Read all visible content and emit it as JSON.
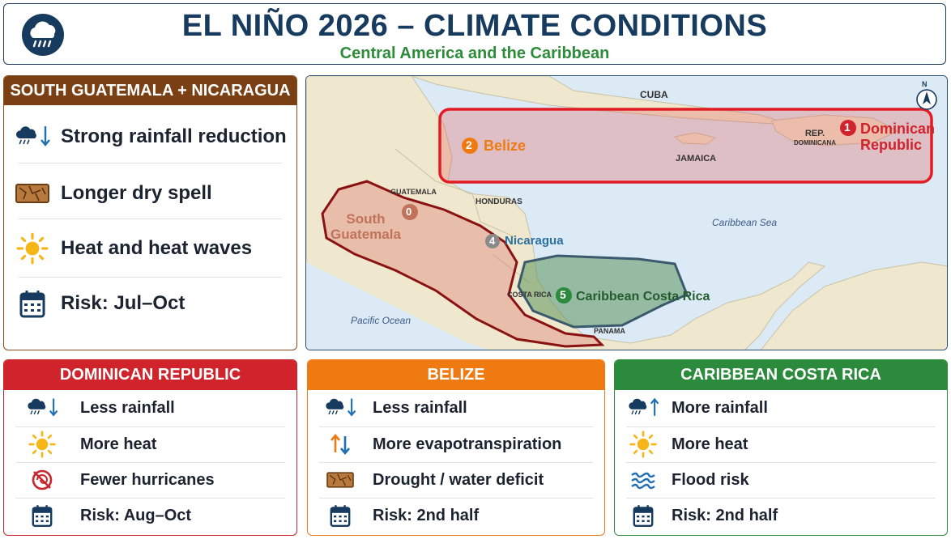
{
  "header": {
    "title": "EL NIÑO 2026 – CLIMATE CONDITIONS",
    "subtitle": "Central America and the Caribbean",
    "logo_icon": "rain-cloud-icon"
  },
  "colors": {
    "navy": "#173b5e",
    "brown": "#7a3f12",
    "red": "#d0232b",
    "orange": "#ef7a12",
    "green": "#2b8a3c"
  },
  "south_guatemala": {
    "title": "SOUTH GUATEMALA + NICARAGUA",
    "items": [
      {
        "icon": "rain-down-icon",
        "label": "Strong rainfall reduction"
      },
      {
        "icon": "dry-soil-icon",
        "label": "Longer dry spell"
      },
      {
        "icon": "sun-icon",
        "label": "Heat and heat waves"
      },
      {
        "icon": "calendar-icon",
        "label": "Risk: Jul–Oct"
      }
    ]
  },
  "map": {
    "labels": {
      "cuba": "CUBA",
      "jamaica": "JAMAICA",
      "rep_dom_1": "REP.",
      "rep_dom_2": "DOMINICANA",
      "guatemala": "GUATEMALA",
      "honduras": "HONDURAS",
      "costa_rica": "COSTA RICA",
      "panama": "PANAMA",
      "caribbean_sea": "Caribbean Sea",
      "pacific_ocean": "Pacific Ocean",
      "north": "N"
    },
    "markers": [
      {
        "num": "1",
        "name_1": "Dominican",
        "name_2": "Republic"
      },
      {
        "num": "2",
        "name": "Belize"
      },
      {
        "num": "0",
        "name_1": "South",
        "name_2": "Guatemala"
      },
      {
        "num": "4",
        "name": "Nicaragua"
      },
      {
        "num": "5",
        "name": "Caribbean Costa Rica"
      }
    ]
  },
  "dominican_republic": {
    "title": "DOMINICAN REPUBLIC",
    "items": [
      {
        "icon": "rain-down-icon",
        "label": "Less rainfall"
      },
      {
        "icon": "sun-icon",
        "label": "More heat"
      },
      {
        "icon": "no-hurricane-icon",
        "label": "Fewer hurricanes"
      },
      {
        "icon": "calendar-icon",
        "label": "Risk: Aug–Oct"
      }
    ]
  },
  "belize": {
    "title": "BELIZE",
    "items": [
      {
        "icon": "rain-down-icon",
        "label": "Less rainfall"
      },
      {
        "icon": "evapotranspiration-icon",
        "label": "More evapotranspiration"
      },
      {
        "icon": "dry-soil-icon",
        "label": "Drought / water deficit"
      },
      {
        "icon": "calendar-icon",
        "label": "Risk: 2nd half"
      }
    ]
  },
  "caribbean_costa_rica": {
    "title": "CARIBBEAN COSTA RICA",
    "items": [
      {
        "icon": "rain-up-icon",
        "label": "More rainfall"
      },
      {
        "icon": "sun-icon",
        "label": "More heat"
      },
      {
        "icon": "flood-waves-icon",
        "label": "Flood risk"
      },
      {
        "icon": "calendar-icon",
        "label": "Risk: 2nd half"
      }
    ]
  }
}
